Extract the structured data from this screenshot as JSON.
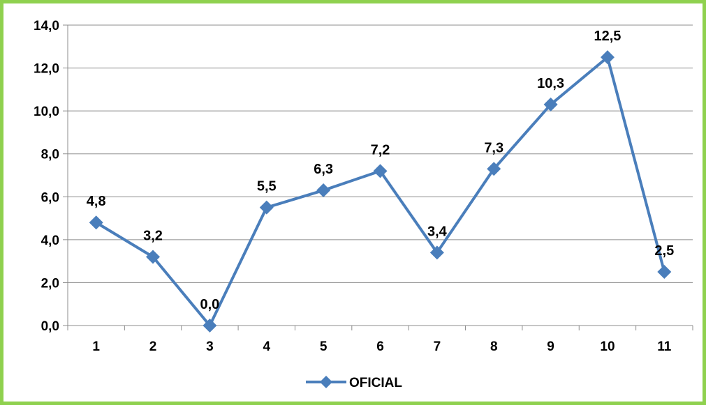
{
  "chart_data": {
    "type": "line",
    "categories": [
      "1",
      "2",
      "3",
      "4",
      "5",
      "6",
      "7",
      "8",
      "9",
      "10",
      "11"
    ],
    "series": [
      {
        "name": "OFICIAL",
        "values": [
          4.8,
          3.2,
          0.0,
          5.5,
          6.3,
          7.2,
          3.4,
          7.3,
          10.3,
          12.5,
          2.5
        ],
        "labels": [
          "4,8",
          "3,2",
          "0,0",
          "5,5",
          "6,3",
          "7,2",
          "3,4",
          "7,3",
          "10,3",
          "12,5",
          "2,5"
        ]
      }
    ],
    "yticks": [
      0,
      2,
      4,
      6,
      8,
      10,
      12,
      14
    ],
    "ytick_labels": [
      "0,0",
      "2,0",
      "4,0",
      "6,0",
      "8,0",
      "10,0",
      "12,0",
      "14,0"
    ],
    "ylim": [
      0,
      14
    ],
    "grid": true,
    "legend": "bottom",
    "colors": {
      "series": "#4a7ebb",
      "frame": "#8fd14f",
      "grid": "#8c8c8c"
    }
  }
}
